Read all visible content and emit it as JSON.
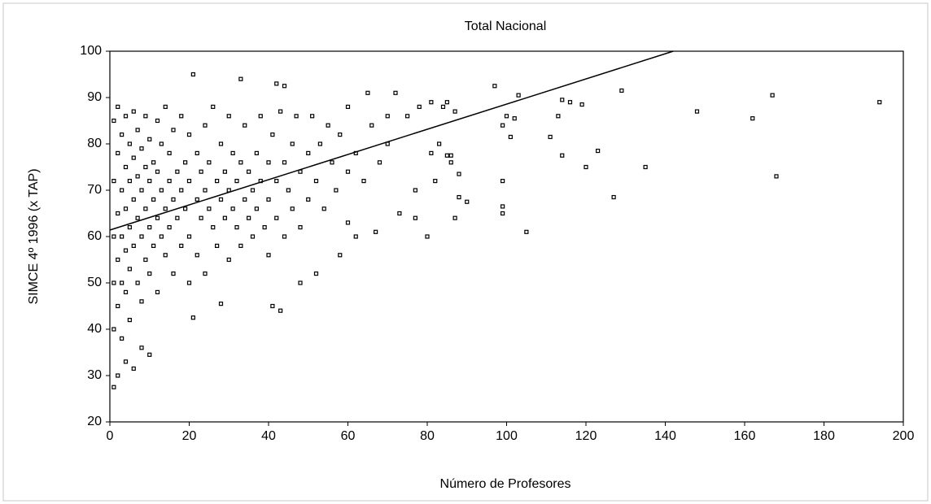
{
  "chart_data": {
    "type": "scatter",
    "title": "Total Nacional",
    "xlabel": "Número de Profesores",
    "ylabel": "SIMCE 4º 1996 (x TAP)",
    "xlim": [
      0,
      200
    ],
    "ylim": [
      20,
      100
    ],
    "xticks": [
      0,
      20,
      40,
      60,
      80,
      100,
      120,
      140,
      160,
      180,
      200
    ],
    "yticks": [
      20,
      30,
      40,
      50,
      60,
      70,
      80,
      90,
      100
    ],
    "color": "#000000",
    "trend_line": {
      "x": [
        0,
        142
      ],
      "y": [
        61.4,
        100
      ]
    },
    "points": [
      {
        "x": 97,
        "y": 92.5
      },
      {
        "x": 103,
        "y": 90.5
      },
      {
        "x": 100,
        "y": 86
      },
      {
        "x": 102,
        "y": 85.5
      },
      {
        "x": 99,
        "y": 84
      },
      {
        "x": 101,
        "y": 81.5
      },
      {
        "x": 111,
        "y": 81.5
      },
      {
        "x": 113,
        "y": 86
      },
      {
        "x": 114,
        "y": 89.5
      },
      {
        "x": 116,
        "y": 89
      },
      {
        "x": 119,
        "y": 88.5
      },
      {
        "x": 114,
        "y": 77.5
      },
      {
        "x": 120,
        "y": 75
      },
      {
        "x": 123,
        "y": 78.5
      },
      {
        "x": 129,
        "y": 91.5
      },
      {
        "x": 135,
        "y": 75
      },
      {
        "x": 127,
        "y": 68.5
      },
      {
        "x": 148,
        "y": 87
      },
      {
        "x": 162,
        "y": 85.5
      },
      {
        "x": 167,
        "y": 90.5
      },
      {
        "x": 168,
        "y": 73
      },
      {
        "x": 194,
        "y": 89
      },
      {
        "x": 105,
        "y": 61
      },
      {
        "x": 99,
        "y": 72
      },
      {
        "x": 99,
        "y": 66.5
      },
      {
        "x": 99,
        "y": 65
      },
      {
        "x": 90,
        "y": 67.5
      },
      {
        "x": 88,
        "y": 68.5
      },
      {
        "x": 88,
        "y": 73.5
      },
      {
        "x": 87,
        "y": 64
      },
      {
        "x": 86,
        "y": 77.5
      },
      {
        "x": 86,
        "y": 76
      },
      {
        "x": 85,
        "y": 77.5
      },
      {
        "x": 83,
        "y": 80
      },
      {
        "x": 81,
        "y": 78
      },
      {
        "x": 80,
        "y": 60
      },
      {
        "x": 82,
        "y": 72
      },
      {
        "x": 77,
        "y": 70
      },
      {
        "x": 77,
        "y": 64
      },
      {
        "x": 73,
        "y": 65
      },
      {
        "x": 78,
        "y": 88
      },
      {
        "x": 81,
        "y": 89
      },
      {
        "x": 84,
        "y": 88
      },
      {
        "x": 85,
        "y": 89
      },
      {
        "x": 87,
        "y": 87
      },
      {
        "x": 21,
        "y": 95
      },
      {
        "x": 33,
        "y": 94
      },
      {
        "x": 42,
        "y": 93
      },
      {
        "x": 44,
        "y": 92.5
      },
      {
        "x": 43,
        "y": 44
      },
      {
        "x": 41,
        "y": 45
      },
      {
        "x": 48,
        "y": 50
      },
      {
        "x": 52,
        "y": 52
      },
      {
        "x": 21,
        "y": 42.5
      },
      {
        "x": 28,
        "y": 45.5
      },
      {
        "x": 6,
        "y": 31.5
      },
      {
        "x": 4,
        "y": 33
      },
      {
        "x": 1,
        "y": 27.5
      },
      {
        "x": 2,
        "y": 30
      },
      {
        "x": 10,
        "y": 34.5
      },
      {
        "x": 8,
        "y": 36
      },
      {
        "x": 65,
        "y": 91
      },
      {
        "x": 72,
        "y": 91
      },
      {
        "x": 70,
        "y": 86
      },
      {
        "x": 75,
        "y": 86
      },
      {
        "x": 62,
        "y": 60
      },
      {
        "x": 67,
        "y": 61
      },
      {
        "x": 60,
        "y": 63
      },
      {
        "x": 58,
        "y": 56
      },
      {
        "x": 1,
        "y": 60
      },
      {
        "x": 1,
        "y": 72
      },
      {
        "x": 1,
        "y": 85
      },
      {
        "x": 1,
        "y": 50
      },
      {
        "x": 1,
        "y": 40
      },
      {
        "x": 2,
        "y": 65
      },
      {
        "x": 2,
        "y": 78
      },
      {
        "x": 2,
        "y": 45
      },
      {
        "x": 2,
        "y": 55
      },
      {
        "x": 2,
        "y": 88
      },
      {
        "x": 3,
        "y": 70
      },
      {
        "x": 3,
        "y": 60
      },
      {
        "x": 3,
        "y": 50
      },
      {
        "x": 3,
        "y": 82
      },
      {
        "x": 3,
        "y": 38
      },
      {
        "x": 4,
        "y": 75
      },
      {
        "x": 4,
        "y": 66
      },
      {
        "x": 4,
        "y": 57
      },
      {
        "x": 4,
        "y": 48
      },
      {
        "x": 4,
        "y": 86
      },
      {
        "x": 5,
        "y": 62
      },
      {
        "x": 5,
        "y": 72
      },
      {
        "x": 5,
        "y": 80
      },
      {
        "x": 5,
        "y": 42
      },
      {
        "x": 5,
        "y": 53
      },
      {
        "x": 6,
        "y": 68
      },
      {
        "x": 6,
        "y": 58
      },
      {
        "x": 6,
        "y": 77
      },
      {
        "x": 6,
        "y": 87
      },
      {
        "x": 7,
        "y": 64
      },
      {
        "x": 7,
        "y": 73
      },
      {
        "x": 7,
        "y": 50
      },
      {
        "x": 7,
        "y": 83
      },
      {
        "x": 8,
        "y": 70
      },
      {
        "x": 8,
        "y": 60
      },
      {
        "x": 8,
        "y": 46
      },
      {
        "x": 8,
        "y": 79
      },
      {
        "x": 9,
        "y": 66
      },
      {
        "x": 9,
        "y": 75
      },
      {
        "x": 9,
        "y": 55
      },
      {
        "x": 9,
        "y": 86
      },
      {
        "x": 10,
        "y": 72
      },
      {
        "x": 10,
        "y": 62
      },
      {
        "x": 10,
        "y": 52
      },
      {
        "x": 10,
        "y": 81
      },
      {
        "x": 11,
        "y": 68
      },
      {
        "x": 11,
        "y": 58
      },
      {
        "x": 11,
        "y": 76
      },
      {
        "x": 12,
        "y": 74
      },
      {
        "x": 12,
        "y": 64
      },
      {
        "x": 12,
        "y": 48
      },
      {
        "x": 12,
        "y": 85
      },
      {
        "x": 13,
        "y": 70
      },
      {
        "x": 13,
        "y": 60
      },
      {
        "x": 13,
        "y": 80
      },
      {
        "x": 14,
        "y": 66
      },
      {
        "x": 14,
        "y": 56
      },
      {
        "x": 14,
        "y": 88
      },
      {
        "x": 15,
        "y": 72
      },
      {
        "x": 15,
        "y": 62
      },
      {
        "x": 15,
        "y": 78
      },
      {
        "x": 16,
        "y": 68
      },
      {
        "x": 16,
        "y": 52
      },
      {
        "x": 16,
        "y": 83
      },
      {
        "x": 17,
        "y": 74
      },
      {
        "x": 17,
        "y": 64
      },
      {
        "x": 18,
        "y": 70
      },
      {
        "x": 18,
        "y": 58
      },
      {
        "x": 18,
        "y": 86
      },
      {
        "x": 19,
        "y": 66
      },
      {
        "x": 19,
        "y": 76
      },
      {
        "x": 20,
        "y": 72
      },
      {
        "x": 20,
        "y": 60
      },
      {
        "x": 20,
        "y": 50
      },
      {
        "x": 20,
        "y": 82
      },
      {
        "x": 22,
        "y": 68
      },
      {
        "x": 22,
        "y": 78
      },
      {
        "x": 22,
        "y": 56
      },
      {
        "x": 23,
        "y": 74
      },
      {
        "x": 23,
        "y": 64
      },
      {
        "x": 24,
        "y": 70
      },
      {
        "x": 24,
        "y": 84
      },
      {
        "x": 24,
        "y": 52
      },
      {
        "x": 25,
        "y": 66
      },
      {
        "x": 25,
        "y": 76
      },
      {
        "x": 26,
        "y": 62
      },
      {
        "x": 26,
        "y": 88
      },
      {
        "x": 27,
        "y": 72
      },
      {
        "x": 27,
        "y": 58
      },
      {
        "x": 28,
        "y": 68
      },
      {
        "x": 28,
        "y": 80
      },
      {
        "x": 29,
        "y": 64
      },
      {
        "x": 29,
        "y": 74
      },
      {
        "x": 30,
        "y": 70
      },
      {
        "x": 30,
        "y": 86
      },
      {
        "x": 30,
        "y": 55
      },
      {
        "x": 31,
        "y": 66
      },
      {
        "x": 31,
        "y": 78
      },
      {
        "x": 32,
        "y": 62
      },
      {
        "x": 32,
        "y": 72
      },
      {
        "x": 33,
        "y": 76
      },
      {
        "x": 33,
        "y": 58
      },
      {
        "x": 34,
        "y": 68
      },
      {
        "x": 34,
        "y": 84
      },
      {
        "x": 35,
        "y": 64
      },
      {
        "x": 35,
        "y": 74
      },
      {
        "x": 36,
        "y": 70
      },
      {
        "x": 36,
        "y": 60
      },
      {
        "x": 37,
        "y": 78
      },
      {
        "x": 37,
        "y": 66
      },
      {
        "x": 38,
        "y": 72
      },
      {
        "x": 38,
        "y": 86
      },
      {
        "x": 39,
        "y": 62
      },
      {
        "x": 40,
        "y": 76
      },
      {
        "x": 40,
        "y": 68
      },
      {
        "x": 40,
        "y": 56
      },
      {
        "x": 41,
        "y": 82
      },
      {
        "x": 42,
        "y": 72
      },
      {
        "x": 42,
        "y": 64
      },
      {
        "x": 43,
        "y": 87
      },
      {
        "x": 44,
        "y": 76
      },
      {
        "x": 44,
        "y": 60
      },
      {
        "x": 45,
        "y": 70
      },
      {
        "x": 46,
        "y": 80
      },
      {
        "x": 46,
        "y": 66
      },
      {
        "x": 47,
        "y": 86
      },
      {
        "x": 48,
        "y": 74
      },
      {
        "x": 48,
        "y": 62
      },
      {
        "x": 50,
        "y": 78
      },
      {
        "x": 50,
        "y": 68
      },
      {
        "x": 51,
        "y": 86
      },
      {
        "x": 52,
        "y": 72
      },
      {
        "x": 53,
        "y": 80
      },
      {
        "x": 54,
        "y": 66
      },
      {
        "x": 55,
        "y": 84
      },
      {
        "x": 56,
        "y": 76
      },
      {
        "x": 57,
        "y": 70
      },
      {
        "x": 58,
        "y": 82
      },
      {
        "x": 60,
        "y": 74
      },
      {
        "x": 60,
        "y": 88
      },
      {
        "x": 62,
        "y": 78
      },
      {
        "x": 64,
        "y": 72
      },
      {
        "x": 66,
        "y": 84
      },
      {
        "x": 68,
        "y": 76
      },
      {
        "x": 70,
        "y": 80
      }
    ]
  }
}
